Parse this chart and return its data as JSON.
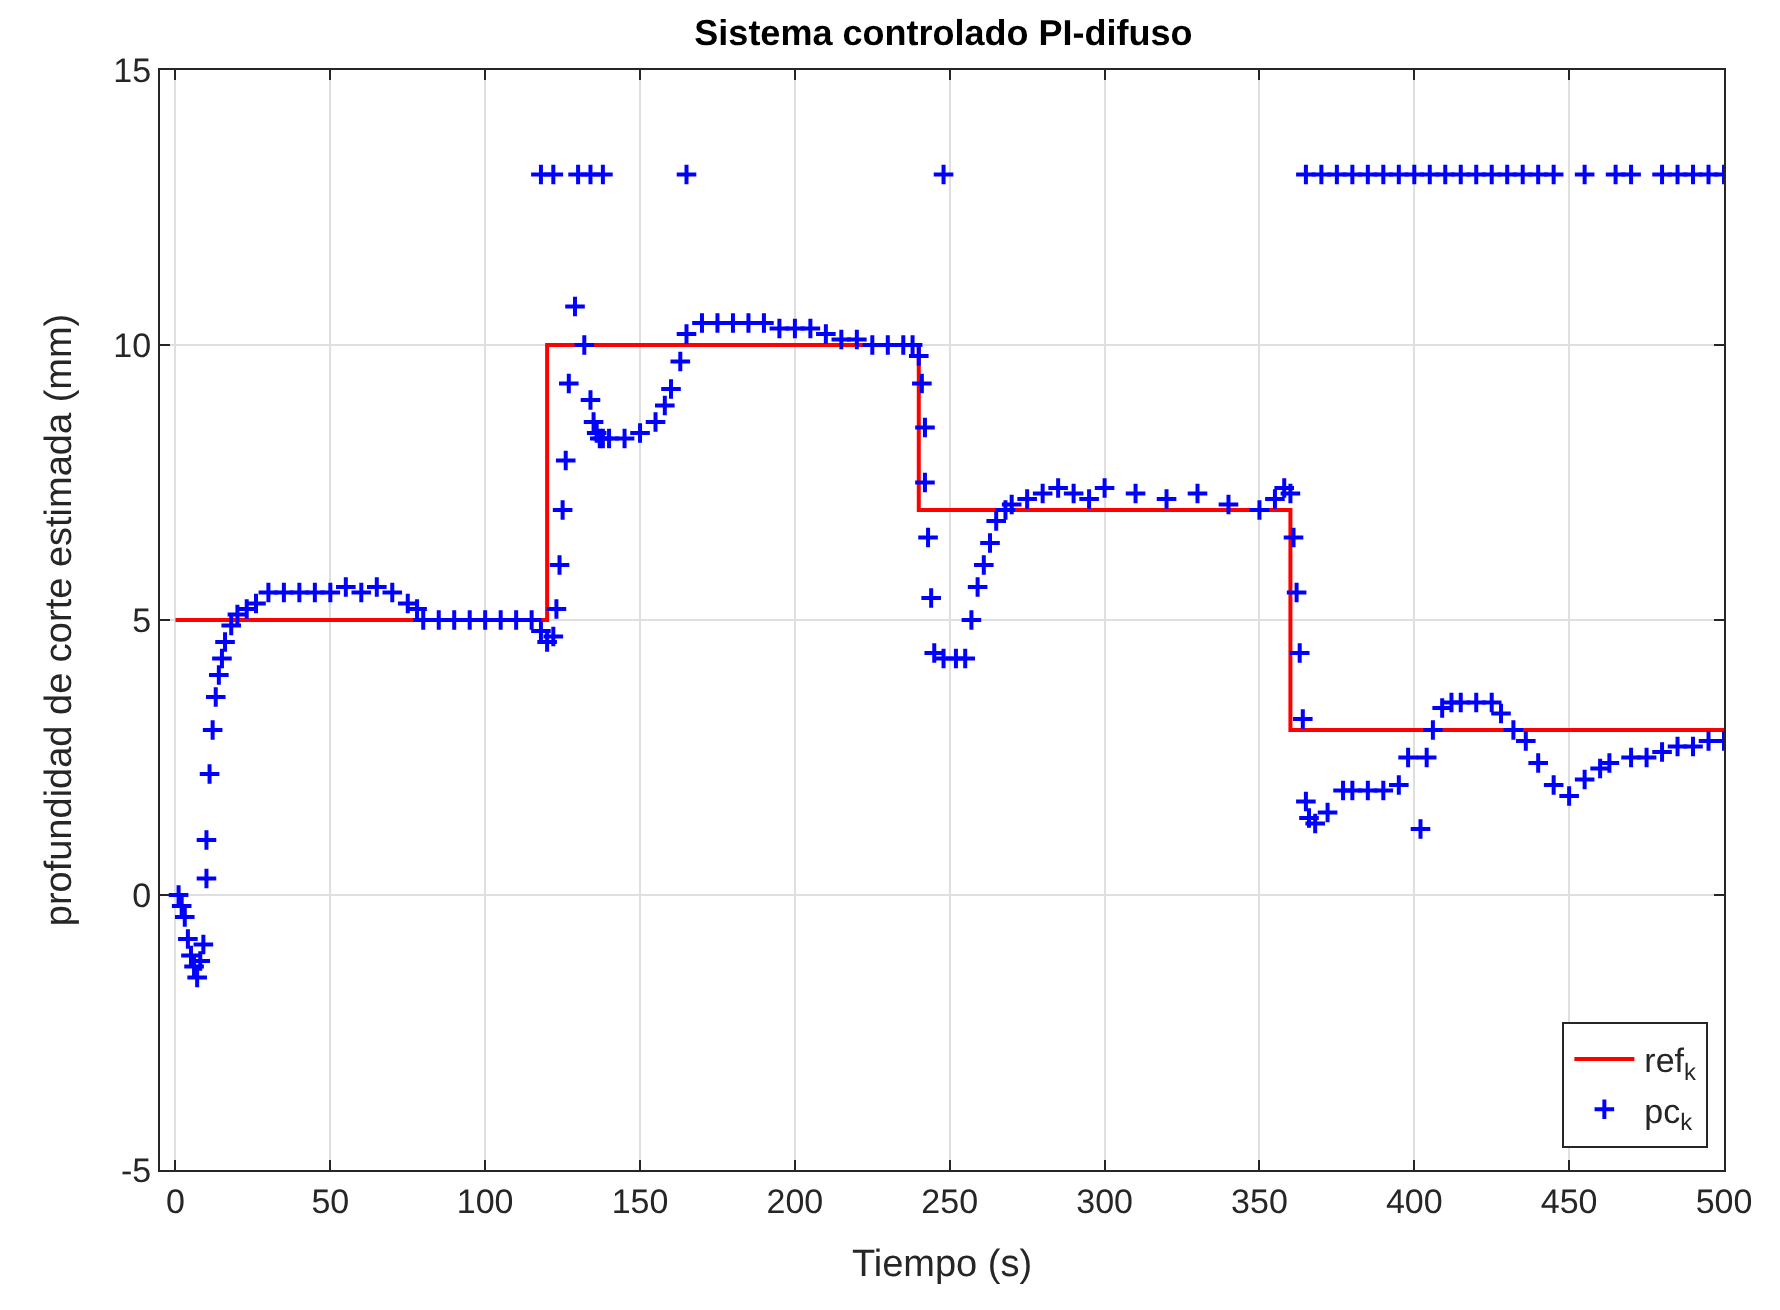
{
  "chart_data": {
    "type": "line",
    "title": "Sistema controlado PI-difuso",
    "xlabel": "Tiempo (s)",
    "ylabel": "profundidad de corte estimada (mm)",
    "xlim": [
      -5,
      500
    ],
    "ylim": [
      -5,
      15
    ],
    "xticks": [
      0,
      50,
      100,
      150,
      200,
      250,
      300,
      350,
      400,
      450,
      500
    ],
    "yticks": [
      -5,
      0,
      5,
      10,
      15
    ],
    "grid": true,
    "legend": "bottom right",
    "series": [
      {
        "name": "ref$_{k}$",
        "color": "#ff0000",
        "line_style": "solid",
        "marker": "none",
        "x": [
          0,
          120,
          120,
          240,
          240,
          360,
          360,
          500
        ],
        "values": [
          5,
          5,
          10,
          10,
          7,
          7,
          3,
          3
        ]
      },
      {
        "name": "pc$_{k}$",
        "type": "scatter",
        "color": "#0000ff",
        "marker": "cross",
        "x": [
          1,
          2,
          3,
          4,
          5,
          6,
          7,
          8,
          9,
          10,
          10,
          11,
          12,
          13,
          14,
          15,
          16,
          18,
          20,
          23,
          26,
          30,
          35,
          40,
          45,
          50,
          55,
          60,
          65,
          70,
          75,
          78,
          80,
          85,
          90,
          95,
          100,
          105,
          110,
          115,
          118,
          120,
          122,
          123,
          124,
          125,
          126,
          127,
          129,
          132,
          134,
          135,
          136,
          137,
          138,
          140,
          145,
          150,
          155,
          158,
          160,
          163,
          165,
          170,
          175,
          180,
          185,
          190,
          195,
          200,
          205,
          210,
          215,
          220,
          225,
          230,
          235,
          238,
          240,
          241,
          242,
          242,
          243,
          244,
          245,
          248,
          252,
          255,
          257,
          259,
          261,
          263,
          265,
          268,
          270,
          275,
          280,
          285,
          290,
          295,
          300,
          310,
          320,
          330,
          340,
          350,
          355,
          358,
          360,
          361,
          362,
          363,
          364,
          365,
          366,
          368,
          372,
          377,
          380,
          385,
          390,
          395,
          398,
          402,
          404,
          406,
          409,
          412,
          415,
          420,
          425,
          428,
          432,
          436,
          440,
          445,
          450,
          455,
          460,
          463,
          470,
          475,
          480,
          485,
          490,
          495,
          500,
          118,
          122,
          130,
          134,
          138,
          165,
          248,
          365,
          370,
          375,
          380,
          385,
          390,
          395,
          400,
          405,
          410,
          415,
          420,
          425,
          430,
          435,
          440,
          445,
          455,
          465,
          470,
          480,
          485,
          490,
          495,
          500
        ],
        "values": [
          0,
          -0.2,
          -0.4,
          -0.8,
          -1.1,
          -1.3,
          -1.5,
          -1.2,
          -0.9,
          0.3,
          1.0,
          2.2,
          3.0,
          3.6,
          4.0,
          4.3,
          4.6,
          4.9,
          5.1,
          5.2,
          5.3,
          5.5,
          5.5,
          5.5,
          5.5,
          5.5,
          5.6,
          5.5,
          5.6,
          5.5,
          5.3,
          5.2,
          5.0,
          5.0,
          5.0,
          5.0,
          5.0,
          5.0,
          5.0,
          5.0,
          4.8,
          4.6,
          4.7,
          5.2,
          6.0,
          7.0,
          7.9,
          9.3,
          10.7,
          10.0,
          9.0,
          8.6,
          8.4,
          8.3,
          8.3,
          8.3,
          8.3,
          8.4,
          8.6,
          8.9,
          9.2,
          9.7,
          10.2,
          10.4,
          10.4,
          10.4,
          10.4,
          10.4,
          10.3,
          10.3,
          10.3,
          10.2,
          10.1,
          10.1,
          10.0,
          10.0,
          10.0,
          10.0,
          9.8,
          9.3,
          8.5,
          7.5,
          6.5,
          5.4,
          4.4,
          4.3,
          4.3,
          4.3,
          5.0,
          5.6,
          6.0,
          6.4,
          6.8,
          7.0,
          7.1,
          7.2,
          7.3,
          7.4,
          7.3,
          7.2,
          7.4,
          7.3,
          7.2,
          7.3,
          7.1,
          7.0,
          7.2,
          7.4,
          7.3,
          6.5,
          5.5,
          4.4,
          3.2,
          1.7,
          1.4,
          1.3,
          1.5,
          1.9,
          1.9,
          1.9,
          1.9,
          2.0,
          2.5,
          1.2,
          2.5,
          3.0,
          3.4,
          3.5,
          3.5,
          3.5,
          3.5,
          3.3,
          3.0,
          2.8,
          2.4,
          2.0,
          1.8,
          2.1,
          2.3,
          2.4,
          2.5,
          2.5,
          2.6,
          2.7,
          2.7,
          2.8,
          2.8,
          13.1,
          13.1,
          13.1,
          13.1,
          13.1,
          13.1,
          13.1,
          13.1,
          13.1,
          13.1,
          13.1,
          13.1,
          13.1,
          13.1,
          13.1,
          13.1,
          13.1,
          13.1,
          13.1,
          13.1,
          13.1,
          13.1,
          13.1,
          13.1,
          13.1,
          13.1,
          13.1,
          13.1,
          13.1,
          13.1,
          13.1,
          13.1
        ]
      }
    ]
  }
}
